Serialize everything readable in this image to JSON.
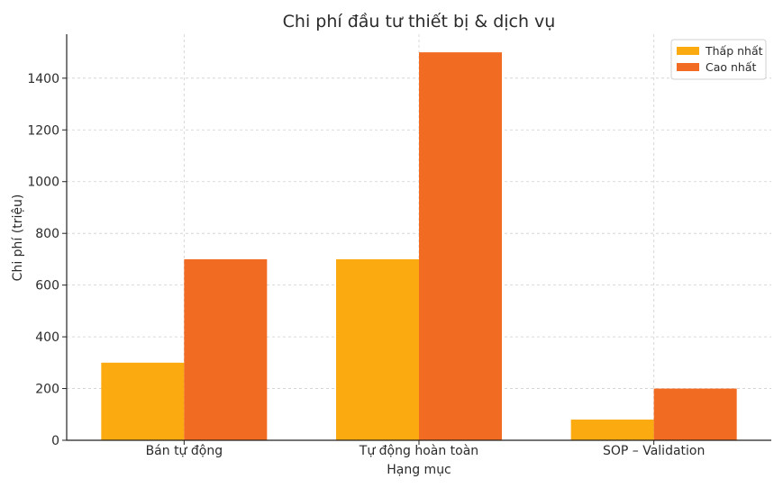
{
  "chart_data": {
    "type": "bar",
    "title": "Chi phí đầu tư thiết bị & dịch vụ",
    "xlabel": "Hạng mục",
    "ylabel": "Chi phí (triệu)",
    "categories": [
      "Bán tự động",
      "Tự động hoàn toàn",
      "SOP – Validation"
    ],
    "series": [
      {
        "name": "Thấp nhất",
        "values": [
          300,
          700,
          80
        ],
        "color": "#FBAA10"
      },
      {
        "name": "Cao nhất",
        "values": [
          700,
          1500,
          200
        ],
        "color": "#F26B22"
      }
    ],
    "ylim": [
      0,
      1570
    ],
    "yticks": [
      0,
      200,
      400,
      600,
      800,
      1000,
      1200,
      1400
    ],
    "grid": true,
    "legend_position": "top-right"
  }
}
